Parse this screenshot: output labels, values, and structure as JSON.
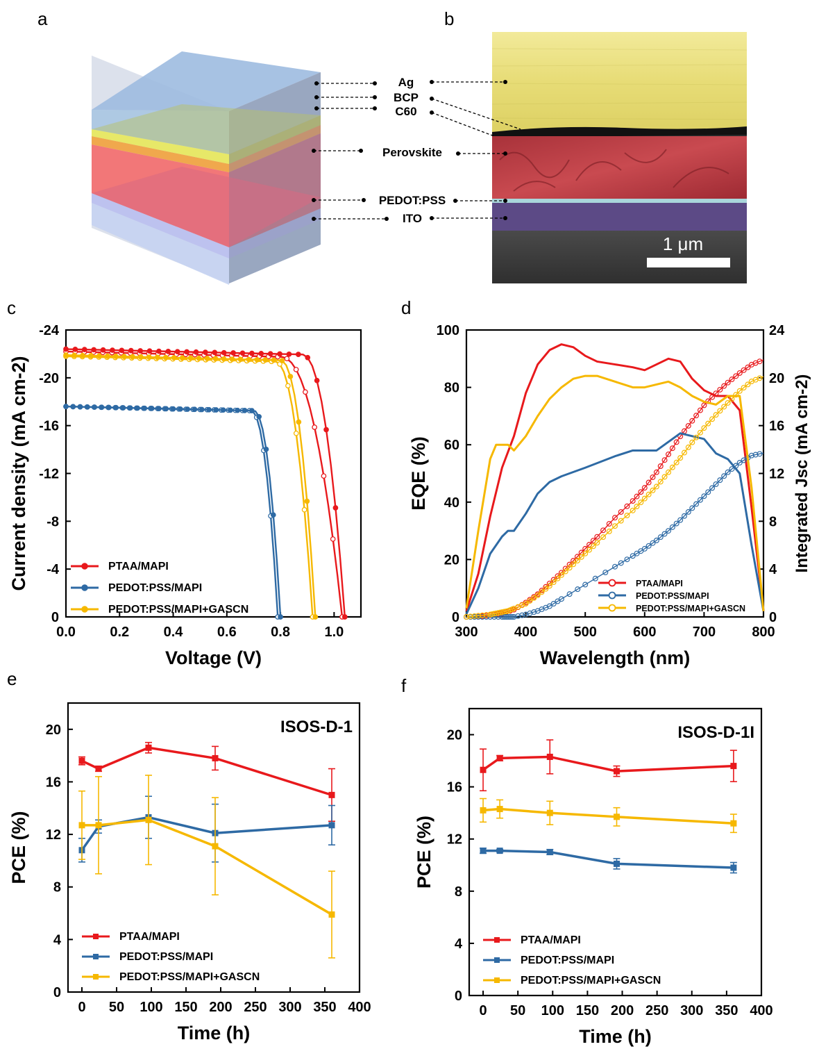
{
  "panels": {
    "a": "a",
    "b": "b",
    "c": "c",
    "d": "d",
    "e": "e",
    "f": "f"
  },
  "layers": [
    "Ag",
    "BCP",
    "C60",
    "Perovskite",
    "PEDOT:PSS",
    "ITO"
  ],
  "scale_bar": "1 μm",
  "colors": {
    "ptaa": "#e8191c",
    "pedot": "#2e6aa4",
    "gascn": "#f6b800"
  },
  "legend": [
    "PTAA/MAPI",
    "PEDOT:PSS/MAPI",
    "PEDOT:PSS/MAPI+GASCN"
  ],
  "chart_data": [
    {
      "id": "c",
      "type": "line",
      "xlabel": "Voltage (V)",
      "ylabel": "Current density (mA cm-2)",
      "xlim": [
        0,
        1.1
      ],
      "ylim": [
        0,
        -24
      ],
      "xticks": [
        "0.0",
        "0.2",
        "0.4",
        "0.6",
        "0.8",
        "1.0"
      ],
      "yticks": [
        "0",
        "-4",
        "-8",
        "-12",
        "-16",
        "-20",
        "-24"
      ],
      "legend_position": "bottom-left",
      "series": [
        {
          "name": "PTAA/MAPI",
          "color": "#e8191c",
          "jsc": -22.4,
          "voc": 1.04,
          "knee": 0.88,
          "reverse_jsc": -22.2,
          "reverse_voc": 1.03,
          "reverse_knee": 0.8
        },
        {
          "name": "PEDOT:PSS/MAPI",
          "color": "#2e6aa4",
          "jsc": -17.6,
          "voc": 0.8,
          "knee": 0.7,
          "reverse_jsc": -17.6,
          "reverse_voc": 0.79,
          "reverse_knee": 0.69
        },
        {
          "name": "PEDOT:PSS/MAPI+GASCN",
          "color": "#f6b800",
          "jsc": -21.9,
          "voc": 0.93,
          "knee": 0.8,
          "reverse_jsc": -21.8,
          "reverse_voc": 0.92,
          "reverse_knee": 0.78
        }
      ]
    },
    {
      "id": "d",
      "type": "line",
      "xlabel": "Wavelength (nm)",
      "ylabel": "EQE (%)",
      "y2label": "Integrated Jsc (mA cm-2)",
      "xlim": [
        300,
        800
      ],
      "ylim": [
        0,
        100
      ],
      "y2lim": [
        0,
        24
      ],
      "xticks": [
        "300",
        "400",
        "500",
        "600",
        "700",
        "800"
      ],
      "yticks": [
        "0",
        "20",
        "40",
        "60",
        "80",
        "100"
      ],
      "y2ticks": [
        "0",
        "4",
        "8",
        "12",
        "16",
        "20",
        "24"
      ],
      "legend_position": "bottom-right",
      "series": [
        {
          "name": "PTAA/MAPI",
          "color": "#e8191c",
          "x": [
            300,
            320,
            340,
            360,
            380,
            400,
            420,
            440,
            460,
            480,
            500,
            520,
            550,
            580,
            600,
            620,
            640,
            660,
            680,
            700,
            720,
            740,
            760,
            780,
            800
          ],
          "eqe": [
            2,
            15,
            35,
            52,
            63,
            78,
            88,
            93,
            95,
            94,
            91,
            89,
            88,
            87,
            86,
            88,
            90,
            89,
            83,
            79,
            77,
            77,
            72,
            38,
            2
          ],
          "jsc_int": [
            0,
            0.02,
            0.15,
            0.3,
            0.6,
            1.2,
            1.9,
            2.8,
            3.7,
            4.7,
            5.7,
            6.7,
            8.3,
            9.7,
            10.8,
            12.1,
            13.6,
            15.1,
            16.4,
            17.7,
            18.7,
            19.6,
            20.4,
            21.1,
            21.5
          ]
        },
        {
          "name": "PEDOT:PSS/MAPI",
          "color": "#2e6aa4",
          "x": [
            300,
            320,
            340,
            360,
            370,
            380,
            400,
            420,
            440,
            460,
            500,
            550,
            580,
            600,
            620,
            640,
            660,
            680,
            700,
            720,
            740,
            760,
            780,
            800
          ],
          "eqe": [
            1,
            10,
            22,
            28,
            30,
            30,
            36,
            43,
            47,
            49,
            52,
            56,
            58,
            58,
            58,
            61,
            64,
            63,
            62,
            57,
            55,
            50,
            25,
            2
          ],
          "jsc_int": [
            0,
            0,
            0,
            0,
            0,
            0,
            0.2,
            0.5,
            0.9,
            1.5,
            2.7,
            4.2,
            5.1,
            5.7,
            6.4,
            7.2,
            8.1,
            9.1,
            10.1,
            11.1,
            12.1,
            12.9,
            13.5,
            13.7
          ]
        },
        {
          "name": "PEDOT:PSS/MAPI+GASCN",
          "color": "#f6b800",
          "x": [
            300,
            320,
            340,
            350,
            360,
            370,
            380,
            400,
            420,
            440,
            460,
            480,
            500,
            520,
            550,
            580,
            600,
            620,
            640,
            660,
            680,
            700,
            720,
            740,
            760,
            780,
            800
          ],
          "eqe": [
            3,
            30,
            55,
            60,
            60,
            60,
            58,
            63,
            70,
            76,
            80,
            83,
            84,
            84,
            82,
            80,
            80,
            81,
            82,
            80,
            77,
            75,
            74,
            77,
            77,
            45,
            2
          ],
          "jsc_int": [
            0,
            0.1,
            0.2,
            0.3,
            0.4,
            0.5,
            0.7,
            1.1,
            1.8,
            2.6,
            3.5,
            4.4,
            5.3,
            6.2,
            7.6,
            8.9,
            9.9,
            10.9,
            12.1,
            13.3,
            14.6,
            15.8,
            16.9,
            17.9,
            18.9,
            19.7,
            20.1
          ]
        }
      ]
    },
    {
      "id": "e",
      "type": "line",
      "title": "ISOS-D-1",
      "xlabel": "Time (h)",
      "ylabel": "PCE (%)",
      "xlim": [
        -20,
        400
      ],
      "ylim": [
        0,
        22
      ],
      "xticks": [
        "0",
        "50",
        "100",
        "150",
        "200",
        "250",
        "300",
        "350",
        "400"
      ],
      "yticks": [
        "0",
        "4",
        "8",
        "12",
        "16",
        "20"
      ],
      "legend_position": "bottom-left",
      "series": [
        {
          "name": "PTAA/MAPI",
          "color": "#e8191c",
          "x": [
            0,
            24,
            96,
            192,
            360
          ],
          "y": [
            17.6,
            17.0,
            18.6,
            17.8,
            15.0
          ],
          "err": [
            0.3,
            0.2,
            0.4,
            0.9,
            2.0
          ]
        },
        {
          "name": "PEDOT:PSS/MAPI",
          "color": "#2e6aa4",
          "x": [
            0,
            24,
            96,
            192,
            360
          ],
          "y": [
            10.8,
            12.6,
            13.3,
            12.1,
            12.7
          ],
          "err": [
            0.9,
            0.5,
            1.6,
            2.2,
            1.5
          ]
        },
        {
          "name": "PEDOT:PSS/MAPI+GASCN",
          "color": "#f6b800",
          "x": [
            0,
            24,
            96,
            192,
            360
          ],
          "y": [
            12.7,
            12.7,
            13.1,
            11.1,
            5.9
          ],
          "err": [
            2.6,
            3.7,
            3.4,
            3.7,
            3.3
          ]
        }
      ]
    },
    {
      "id": "f",
      "type": "line",
      "title": "ISOS-D-1I",
      "xlabel": "Time (h)",
      "ylabel": "PCE (%)",
      "xlim": [
        -20,
        400
      ],
      "ylim": [
        0,
        22
      ],
      "xticks": [
        "0",
        "50",
        "100",
        "150",
        "200",
        "250",
        "300",
        "350",
        "400"
      ],
      "yticks": [
        "0",
        "4",
        "8",
        "12",
        "16",
        "20"
      ],
      "legend_position": "bottom-left",
      "series": [
        {
          "name": "PTAA/MAPI",
          "color": "#e8191c",
          "x": [
            0,
            24,
            96,
            192,
            360
          ],
          "y": [
            17.3,
            18.2,
            18.3,
            17.2,
            17.6
          ],
          "err": [
            1.6,
            0.2,
            1.3,
            0.4,
            1.2
          ]
        },
        {
          "name": "PEDOT:PSS/MAPI",
          "color": "#2e6aa4",
          "x": [
            0,
            24,
            96,
            192,
            360
          ],
          "y": [
            11.1,
            11.1,
            11.0,
            10.1,
            9.8
          ],
          "err": [
            0.2,
            0.1,
            0.2,
            0.4,
            0.4
          ]
        },
        {
          "name": "PEDOT:PSS/MAPI+GASCN",
          "color": "#f6b800",
          "x": [
            0,
            24,
            96,
            192,
            360
          ],
          "y": [
            14.2,
            14.3,
            14.0,
            13.7,
            13.2
          ],
          "err": [
            0.9,
            0.7,
            0.9,
            0.7,
            0.7
          ]
        }
      ]
    }
  ]
}
